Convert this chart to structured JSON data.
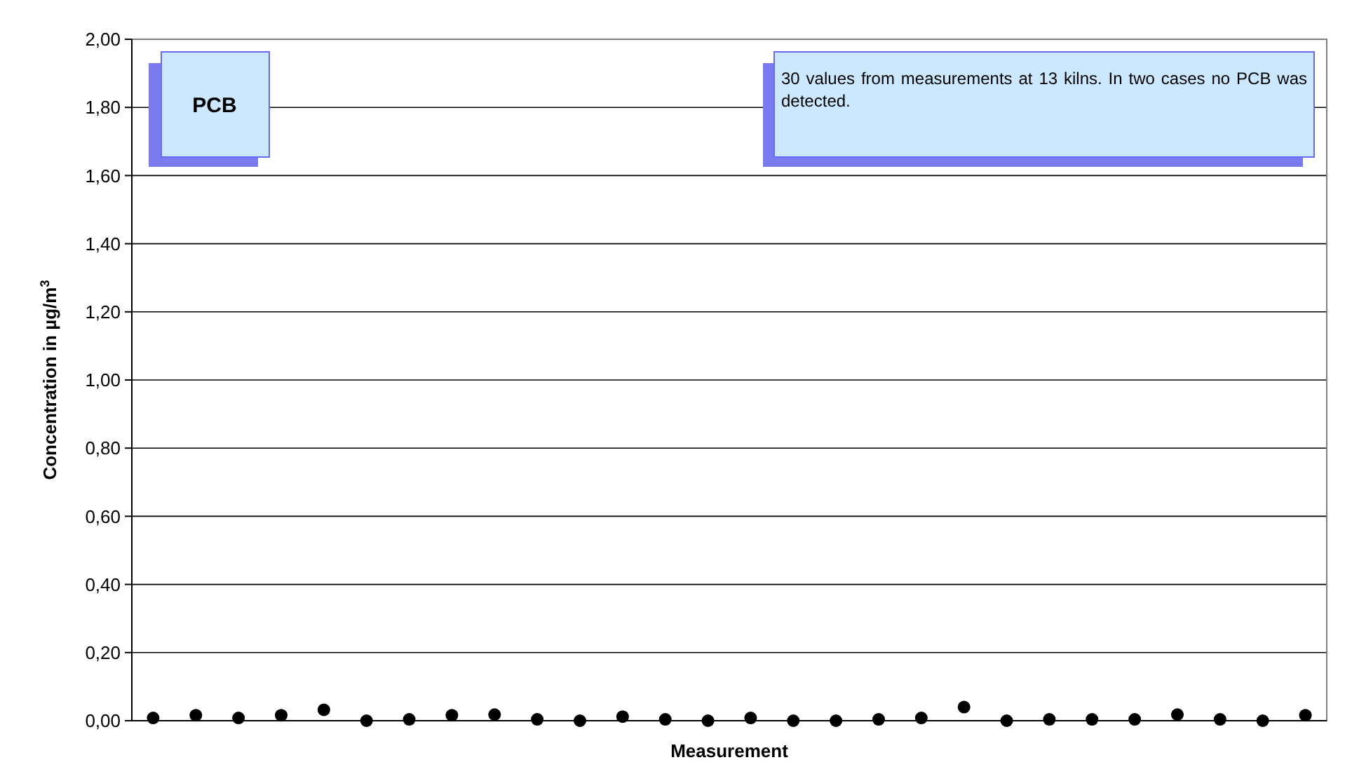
{
  "chart_data": {
    "type": "scatter",
    "xlabel": "Measurement",
    "ylabel": "Concentration in µg/m$^{3}$",
    "categories": [
      null,
      null,
      null,
      null,
      null,
      null,
      null,
      null,
      null,
      null,
      null,
      null,
      null,
      null,
      null,
      null,
      null,
      null,
      null,
      null,
      null,
      null,
      null,
      null,
      null,
      null,
      null,
      null
    ],
    "series": [
      {
        "color": "#000000",
        "values": [
          0.008,
          0.016,
          0.008,
          0.016,
          0.032,
          0,
          0.004,
          0.016,
          0.018,
          0.004,
          0,
          0.012,
          0.004,
          0,
          0.008,
          0,
          0,
          0.004,
          0.008,
          0.04,
          0,
          0.004,
          0.004,
          0.004,
          0.018,
          0.004,
          0,
          0.016
        ]
      }
    ],
    "ylim": [
      0,
      2
    ],
    "yticks": [
      {
        "value": 0,
        "label": "0,00"
      },
      {
        "value": 0.2,
        "label": "0,20"
      },
      {
        "value": 0.4,
        "label": "0,40"
      },
      {
        "value": 0.6,
        "label": "0,60"
      },
      {
        "value": 0.8,
        "label": "0,80"
      },
      {
        "value": 1,
        "label": "1,00"
      },
      {
        "value": 1.2,
        "label": "1,20"
      },
      {
        "value": 1.4,
        "label": "1,40"
      },
      {
        "value": 1.6,
        "label": "1,60"
      },
      {
        "value": 1.8,
        "label": "1,80"
      },
      {
        "value": 2,
        "label": "2,00"
      }
    ],
    "grid": "y",
    "marker": "circle",
    "tick_labels": "y",
    "annotations": [
      "PCB",
      "30 values from measurements at 13 kilns. In two cases no PCB was detected."
    ]
  }
}
